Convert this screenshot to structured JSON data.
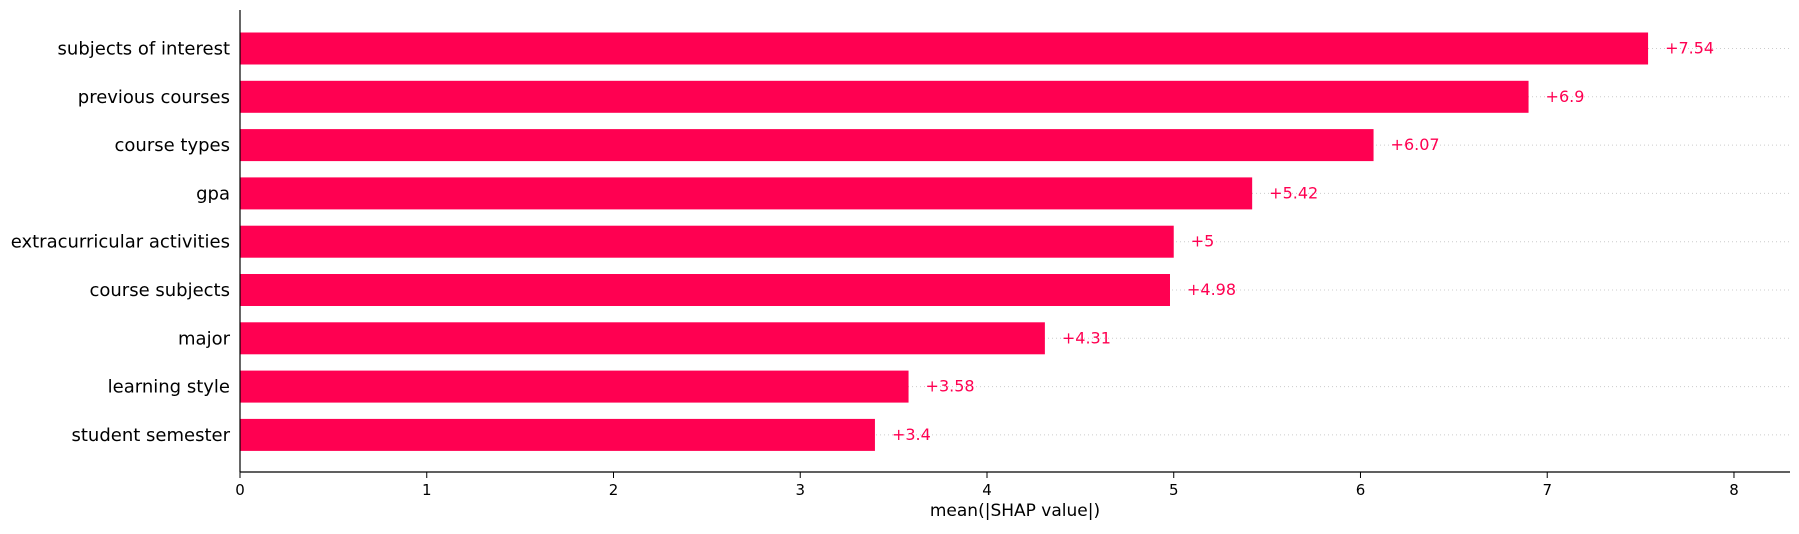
{
  "chart_data": {
    "type": "bar",
    "orientation": "horizontal",
    "categories": [
      "subjects of interest",
      "previous courses",
      "course types",
      "gpa",
      "extracurricular activities",
      "course subjects",
      "major",
      "learning style",
      "student semester"
    ],
    "values": [
      7.54,
      6.9,
      6.07,
      5.42,
      5,
      4.98,
      4.31,
      3.58,
      3.4
    ],
    "value_labels": [
      "+7.54",
      "+6.9",
      "+6.07",
      "+5.42",
      "+5",
      "+4.98",
      "+4.31",
      "+3.58",
      "+3.4"
    ],
    "xlabel": "mean(|SHAP value|)",
    "ylabel": "",
    "title": "",
    "xlim": [
      0,
      8.3
    ],
    "xticks": [
      0,
      1,
      2,
      3,
      4,
      5,
      6,
      7,
      8
    ],
    "xtick_labels": [
      "0",
      "1",
      "2",
      "3",
      "4",
      "5",
      "6",
      "7",
      "8"
    ],
    "grid": "dotted horizontal guide lines beside each bar",
    "legend": "none",
    "colors": {
      "bar": "#ff0051",
      "value_label": "#ff0051",
      "guide_line": "#cccccc",
      "axis": "#000000",
      "text": "#000000"
    }
  }
}
